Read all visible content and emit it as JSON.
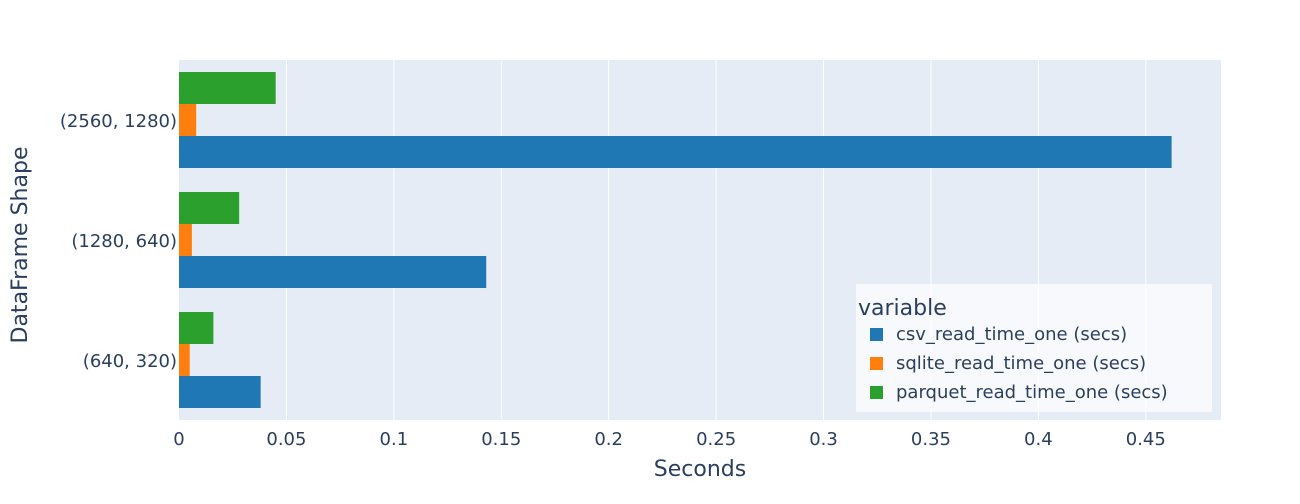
{
  "chart_data": {
    "type": "bar",
    "orientation": "horizontal",
    "barmode": "group",
    "title": "",
    "xlabel": "Seconds",
    "ylabel": "DataFrame Shape",
    "categories": [
      "(640, 320)",
      "(1280, 640)",
      "(2560, 1280)"
    ],
    "xlim": [
      0,
      0.485
    ],
    "x_ticks": [
      "0",
      "0.05",
      "0.1",
      "0.15",
      "0.2",
      "0.25",
      "0.3",
      "0.35",
      "0.4",
      "0.45"
    ],
    "x_tick_values": [
      0,
      0.05,
      0.1,
      0.15,
      0.2,
      0.25,
      0.3,
      0.35,
      0.4,
      0.45
    ],
    "grid": true,
    "legend": {
      "title": "variable",
      "placement": "bottom-right"
    },
    "series": [
      {
        "name": "csv_read_time_one (secs)",
        "color": "#1f77b4",
        "values": [
          0.038,
          0.143,
          0.462
        ]
      },
      {
        "name": "sqlite_read_time_one (secs)",
        "color": "#ff7f0e",
        "values": [
          0.005,
          0.006,
          0.008
        ]
      },
      {
        "name": "parquet_read_time_one (secs)",
        "color": "#2ca02c",
        "values": [
          0.016,
          0.028,
          0.045
        ]
      }
    ],
    "colors": {
      "plot_background": "#e5ecf6",
      "text": "#2a3f5f"
    }
  }
}
